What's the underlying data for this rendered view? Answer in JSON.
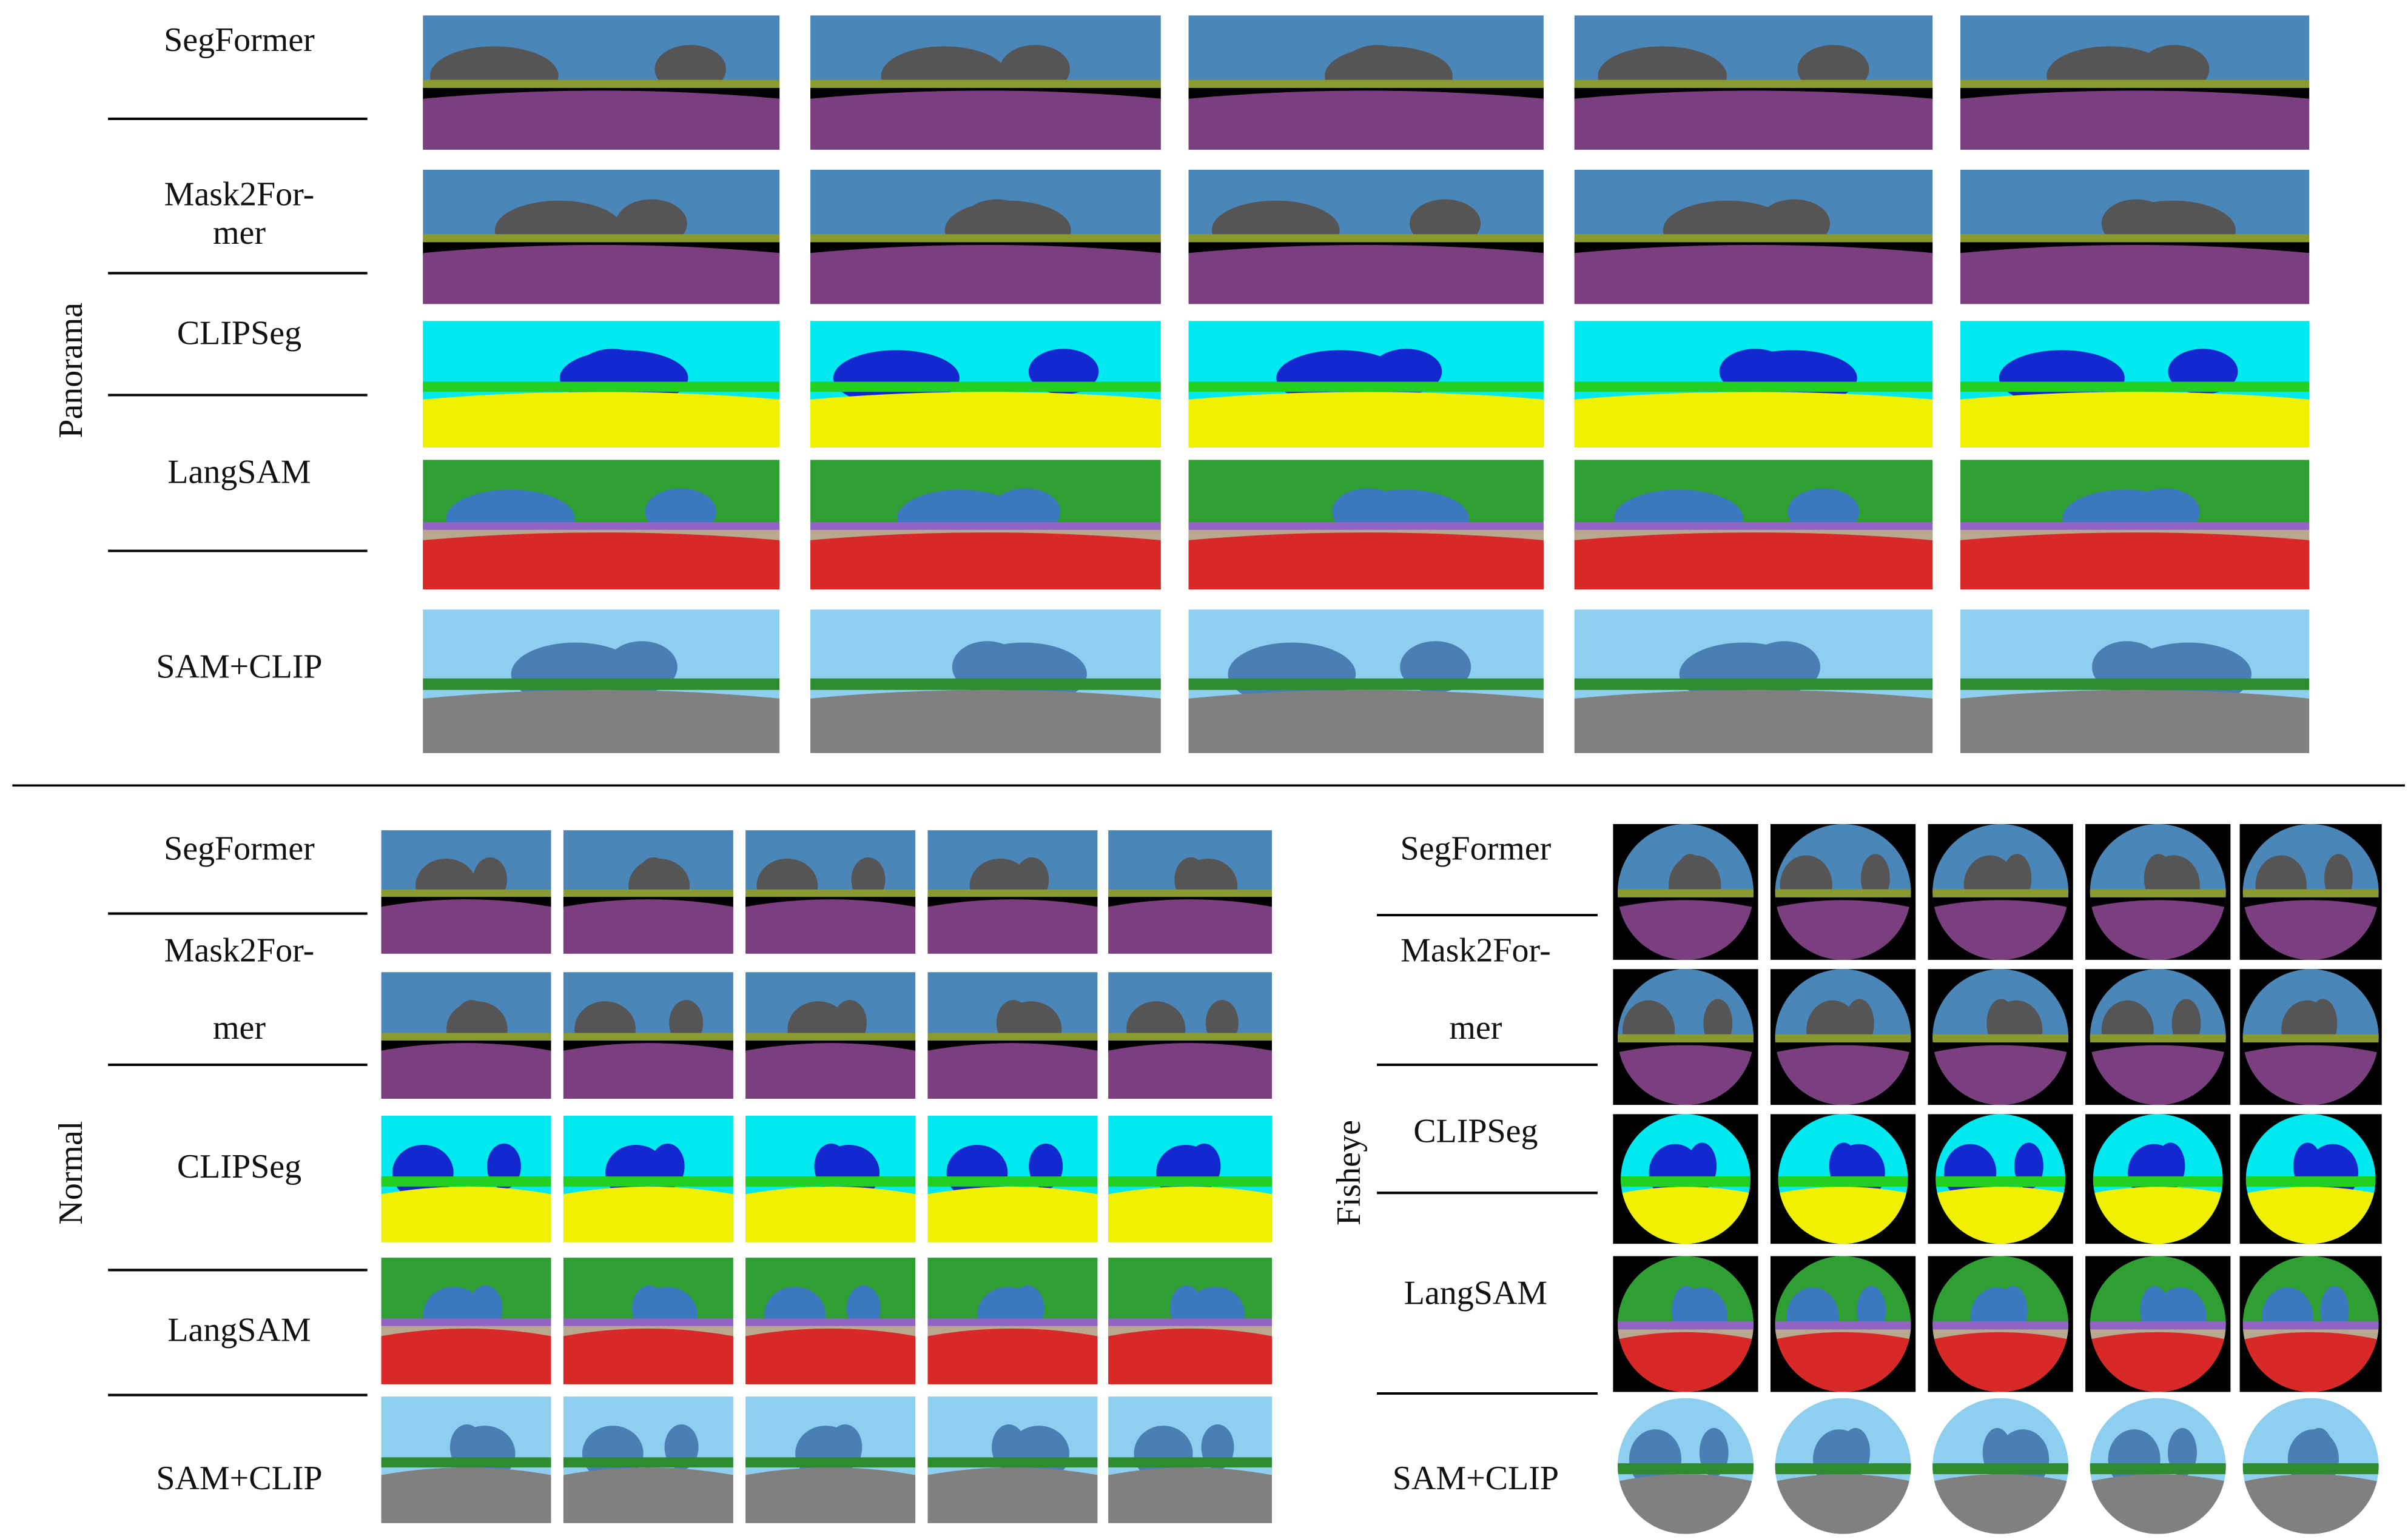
{
  "sections": [
    {
      "label": "Panorama",
      "methods": [
        {
          "lines": [
            "SegFormer"
          ]
        },
        {
          "lines": [
            "Mask2For-",
            "mer"
          ]
        },
        {
          "lines": [
            "CLIPSeg"
          ]
        },
        {
          "lines": [
            "LangSAM"
          ]
        },
        {
          "lines": [
            "SAM+CLIP"
          ]
        }
      ]
    },
    {
      "label": "Normal",
      "methods": [
        {
          "lines": [
            "SegFormer"
          ]
        },
        {
          "lines": [
            "Mask2For-",
            "mer"
          ]
        },
        {
          "lines": [
            "CLIPSeg"
          ]
        },
        {
          "lines": [
            "LangSAM"
          ]
        },
        {
          "lines": [
            "SAM+CLIP"
          ]
        }
      ]
    },
    {
      "label": "Fisheye",
      "methods": [
        {
          "lines": [
            "SegFormer"
          ]
        },
        {
          "lines": [
            "Mask2For-",
            "mer"
          ]
        },
        {
          "lines": [
            "CLIPSeg"
          ]
        },
        {
          "lines": [
            "LangSAM"
          ]
        },
        {
          "lines": [
            "SAM+CLIP"
          ]
        }
      ]
    }
  ]
}
